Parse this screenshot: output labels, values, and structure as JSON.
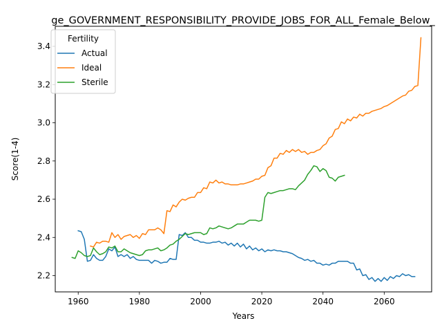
{
  "chart_data": {
    "type": "line",
    "title": "ge_GOVERNMENT_RESPONSIBILITY_PROVIDE_JOBS_FOR_ALL_Female_Below_",
    "xlabel": "Years",
    "ylabel": "Score(1-4)",
    "xlim": [
      1952.5,
      2075.5
    ],
    "ylim": [
      2.115,
      3.505
    ],
    "xticks": [
      1960,
      1980,
      2000,
      2020,
      2040,
      2060
    ],
    "yticks": [
      2.2,
      2.4,
      2.6,
      2.8,
      3.0,
      3.2,
      3.4
    ],
    "xtick_labels": [
      "1960",
      "1980",
      "2000",
      "2020",
      "2040",
      "2060"
    ],
    "ytick_labels": [
      "2.2",
      "2.4",
      "2.6",
      "2.8",
      "3.0",
      "3.2",
      "3.4"
    ],
    "grid": false,
    "legend": {
      "title": "Fertility",
      "placement": "upper-left"
    },
    "series": [
      {
        "name": "Actual",
        "color": "#1f77b4",
        "x_start": 1960,
        "values": [
          2.435,
          2.43,
          2.39,
          2.275,
          2.28,
          2.31,
          2.29,
          2.28,
          2.28,
          2.3,
          2.34,
          2.33,
          2.35,
          2.3,
          2.31,
          2.3,
          2.31,
          2.29,
          2.3,
          2.285,
          2.28,
          2.28,
          2.28,
          2.28,
          2.265,
          2.28,
          2.275,
          2.265,
          2.27,
          2.27,
          2.29,
          2.285,
          2.285,
          2.415,
          2.41,
          2.425,
          2.4,
          2.4,
          2.385,
          2.385,
          2.375,
          2.375,
          2.37,
          2.37,
          2.375,
          2.375,
          2.38,
          2.37,
          2.375,
          2.36,
          2.37,
          2.355,
          2.37,
          2.35,
          2.365,
          2.34,
          2.355,
          2.335,
          2.345,
          2.33,
          2.34,
          2.325,
          2.335,
          2.33,
          2.335,
          2.33,
          2.33,
          2.325,
          2.325,
          2.32,
          2.315,
          2.305,
          2.295,
          2.29,
          2.28,
          2.285,
          2.275,
          2.28,
          2.265,
          2.265,
          2.255,
          2.26,
          2.255,
          2.265,
          2.265,
          2.275,
          2.275,
          2.275,
          2.275,
          2.265,
          2.265,
          2.23,
          2.235,
          2.2,
          2.205,
          2.18,
          2.19,
          2.17,
          2.185,
          2.17,
          2.19,
          2.175,
          2.195,
          2.185,
          2.2,
          2.195,
          2.21,
          2.2,
          2.205,
          2.195,
          2.195
        ]
      },
      {
        "name": "Ideal",
        "color": "#ff7f0e",
        "x_start": 1964,
        "values": [
          2.355,
          2.35,
          2.375,
          2.37,
          2.38,
          2.38,
          2.375,
          2.425,
          2.4,
          2.415,
          2.39,
          2.405,
          2.41,
          2.415,
          2.4,
          2.41,
          2.395,
          2.42,
          2.415,
          2.44,
          2.44,
          2.44,
          2.45,
          2.44,
          2.42,
          2.54,
          2.535,
          2.57,
          2.56,
          2.585,
          2.6,
          2.595,
          2.605,
          2.61,
          2.61,
          2.635,
          2.635,
          2.66,
          2.655,
          2.69,
          2.685,
          2.7,
          2.685,
          2.69,
          2.68,
          2.68,
          2.675,
          2.675,
          2.675,
          2.68,
          2.68,
          2.685,
          2.69,
          2.695,
          2.705,
          2.705,
          2.72,
          2.725,
          2.765,
          2.775,
          2.815,
          2.815,
          2.84,
          2.835,
          2.855,
          2.845,
          2.86,
          2.85,
          2.86,
          2.845,
          2.85,
          2.835,
          2.845,
          2.845,
          2.855,
          2.86,
          2.88,
          2.89,
          2.92,
          2.93,
          2.965,
          2.97,
          3.005,
          2.995,
          3.02,
          3.01,
          3.03,
          3.025,
          3.045,
          3.035,
          3.05,
          3.05,
          3.06,
          3.065,
          3.07,
          3.075,
          3.085,
          3.09,
          3.1,
          3.11,
          3.12,
          3.13,
          3.14,
          3.145,
          3.165,
          3.17,
          3.19,
          3.195,
          3.445
        ]
      },
      {
        "name": "Sterile",
        "color": "#2ca02c",
        "x_start": 1958,
        "values": [
          2.295,
          2.29,
          2.33,
          2.32,
          2.305,
          2.3,
          2.305,
          2.345,
          2.325,
          2.31,
          2.315,
          2.325,
          2.35,
          2.345,
          2.355,
          2.325,
          2.325,
          2.34,
          2.33,
          2.32,
          2.315,
          2.31,
          2.305,
          2.31,
          2.33,
          2.335,
          2.335,
          2.34,
          2.345,
          2.33,
          2.335,
          2.345,
          2.36,
          2.365,
          2.38,
          2.39,
          2.405,
          2.42,
          2.415,
          2.42,
          2.425,
          2.425,
          2.425,
          2.415,
          2.42,
          2.45,
          2.445,
          2.45,
          2.46,
          2.455,
          2.45,
          2.445,
          2.45,
          2.46,
          2.47,
          2.47,
          2.47,
          2.48,
          2.49,
          2.49,
          2.49,
          2.485,
          2.49,
          2.61,
          2.635,
          2.63,
          2.635,
          2.64,
          2.645,
          2.645,
          2.65,
          2.655,
          2.655,
          2.65,
          2.67,
          2.685,
          2.7,
          2.73,
          2.75,
          2.775,
          2.77,
          2.745,
          2.76,
          2.75,
          2.715,
          2.71,
          2.695,
          2.715,
          2.72,
          2.725
        ]
      }
    ]
  }
}
